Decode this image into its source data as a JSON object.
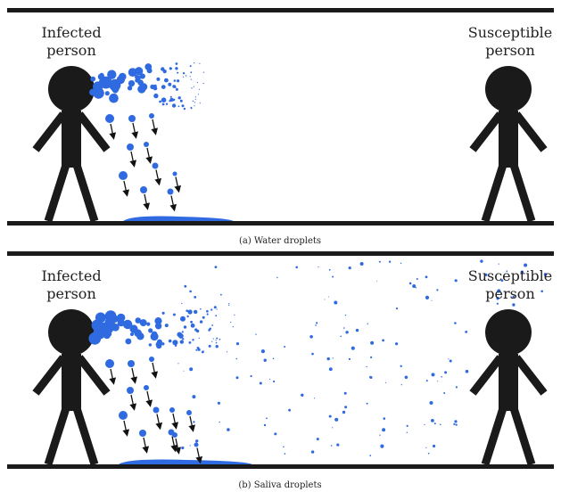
{
  "panels": [
    {
      "infected_label": [
        "Infected",
        "person"
      ],
      "susceptible_label": [
        "Susceptible",
        "person"
      ],
      "caption": "(a) Water droplets"
    },
    {
      "infected_label": [
        "Infected",
        "person"
      ],
      "susceptible_label": [
        "Susceptible",
        "person"
      ],
      "caption": "(b) Saliva droplets"
    }
  ]
}
